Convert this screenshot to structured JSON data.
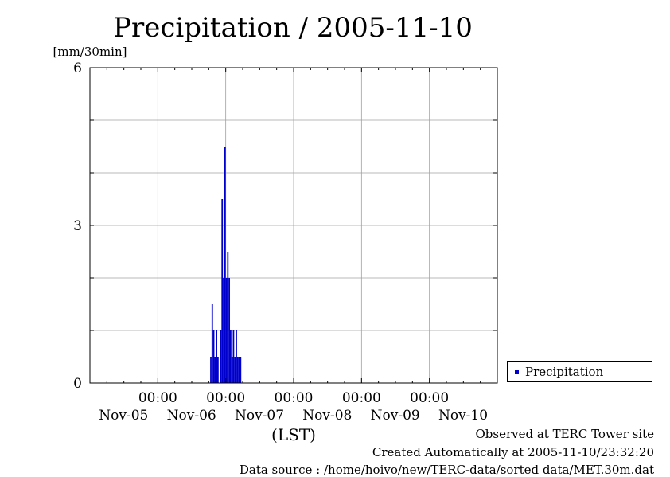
{
  "chart_data": {
    "type": "bar",
    "title": "Precipitation / 2005-11-10",
    "ylabel": "[mm/30min]",
    "xlabel": "(LST)",
    "ylim": [
      0,
      6
    ],
    "yticks": [
      0,
      3,
      6
    ],
    "xlim": [
      "2005-11-04T00:00",
      "2005-11-10T00:00"
    ],
    "xticks": [
      {
        "time": "2005-11-05T00:00",
        "time_label": "00:00",
        "date_label": "Nov-05"
      },
      {
        "time": "2005-11-06T00:00",
        "time_label": "00:00",
        "date_label": "Nov-06"
      },
      {
        "time": "2005-11-07T00:00",
        "time_label": "00:00",
        "date_label": "Nov-07"
      },
      {
        "time": "2005-11-08T00:00",
        "time_label": "00:00",
        "date_label": "Nov-08"
      },
      {
        "time": "2005-11-09T00:00",
        "time_label": "00:00",
        "date_label": "Nov-09"
      }
    ],
    "grid": true,
    "legend_position": "right",
    "series": [
      {
        "name": "Precipitation",
        "color": "#0000cc",
        "points": [
          {
            "t": "2005-11-05T18:30",
            "v": 0.5
          },
          {
            "t": "2005-11-05T19:00",
            "v": 1.5
          },
          {
            "t": "2005-11-05T19:30",
            "v": 1.0
          },
          {
            "t": "2005-11-05T20:00",
            "v": 0.5
          },
          {
            "t": "2005-11-05T20:30",
            "v": 1.0
          },
          {
            "t": "2005-11-05T21:00",
            "v": 0.5
          },
          {
            "t": "2005-11-05T22:00",
            "v": 1.0
          },
          {
            "t": "2005-11-05T22:30",
            "v": 3.5
          },
          {
            "t": "2005-11-05T23:00",
            "v": 2.0
          },
          {
            "t": "2005-11-05T23:30",
            "v": 4.5
          },
          {
            "t": "2005-11-06T00:00",
            "v": 2.0
          },
          {
            "t": "2005-11-06T00:30",
            "v": 2.5
          },
          {
            "t": "2005-11-06T01:00",
            "v": 2.0
          },
          {
            "t": "2005-11-06T01:30",
            "v": 1.0
          },
          {
            "t": "2005-11-06T02:00",
            "v": 0.5
          },
          {
            "t": "2005-11-06T02:30",
            "v": 1.0
          },
          {
            "t": "2005-11-06T03:00",
            "v": 0.5
          },
          {
            "t": "2005-11-06T03:30",
            "v": 1.0
          },
          {
            "t": "2005-11-06T04:00",
            "v": 0.5
          },
          {
            "t": "2005-11-06T04:30",
            "v": 0.5
          },
          {
            "t": "2005-11-06T05:00",
            "v": 0.5
          }
        ]
      }
    ]
  },
  "footer": {
    "observed": "Observed at TERC Tower site",
    "created": "Created Automatically at 2005-11-10/23:32:20",
    "source": "Data source : /home/hoivo/new/TERC-data/sorted  data/MET.30m.dat"
  }
}
